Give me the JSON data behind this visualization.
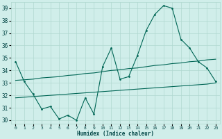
{
  "xlabel": "Humidex (Indice chaleur)",
  "background_color": "#d0eeea",
  "grid_color": "#b0d8d0",
  "line_color": "#006655",
  "xlim": [
    -0.5,
    23.5
  ],
  "ylim": [
    29.7,
    39.5
  ],
  "yticks": [
    30,
    31,
    32,
    33,
    34,
    35,
    36,
    37,
    38,
    39
  ],
  "xticks": [
    0,
    1,
    2,
    3,
    4,
    5,
    6,
    7,
    8,
    9,
    10,
    11,
    12,
    13,
    14,
    15,
    16,
    17,
    18,
    19,
    20,
    21,
    22,
    23
  ],
  "line1_x": [
    0,
    1,
    2,
    3,
    4,
    5,
    6,
    7,
    8,
    9,
    10,
    11,
    12,
    13,
    14,
    15,
    16,
    17,
    18,
    19,
    20,
    21,
    22,
    23
  ],
  "line1_y": [
    34.7,
    33.1,
    32.1,
    30.9,
    31.1,
    30.1,
    30.4,
    30.0,
    31.8,
    30.5,
    34.3,
    35.8,
    33.3,
    33.5,
    35.2,
    37.2,
    38.5,
    39.2,
    39.0,
    36.5,
    35.8,
    34.7,
    34.2,
    33.1
  ],
  "line2_x": [
    0,
    1,
    2,
    3,
    4,
    5,
    6,
    7,
    8,
    9,
    10,
    11,
    12,
    13,
    14,
    15,
    16,
    17,
    18,
    19,
    20,
    21,
    22,
    23
  ],
  "line2_y": [
    33.2,
    33.25,
    33.3,
    33.4,
    33.45,
    33.5,
    33.6,
    33.65,
    33.75,
    33.8,
    33.9,
    34.0,
    34.05,
    34.15,
    34.2,
    34.3,
    34.4,
    34.45,
    34.55,
    34.6,
    34.7,
    34.75,
    34.85,
    34.9
  ],
  "line3_x": [
    0,
    1,
    2,
    3,
    4,
    5,
    6,
    7,
    8,
    9,
    10,
    11,
    12,
    13,
    14,
    15,
    16,
    17,
    18,
    19,
    20,
    21,
    22,
    23
  ],
  "line3_y": [
    31.8,
    31.85,
    31.9,
    31.95,
    32.0,
    32.05,
    32.1,
    32.15,
    32.2,
    32.25,
    32.3,
    32.35,
    32.4,
    32.45,
    32.5,
    32.55,
    32.6,
    32.65,
    32.7,
    32.75,
    32.8,
    32.85,
    32.9,
    33.0
  ]
}
